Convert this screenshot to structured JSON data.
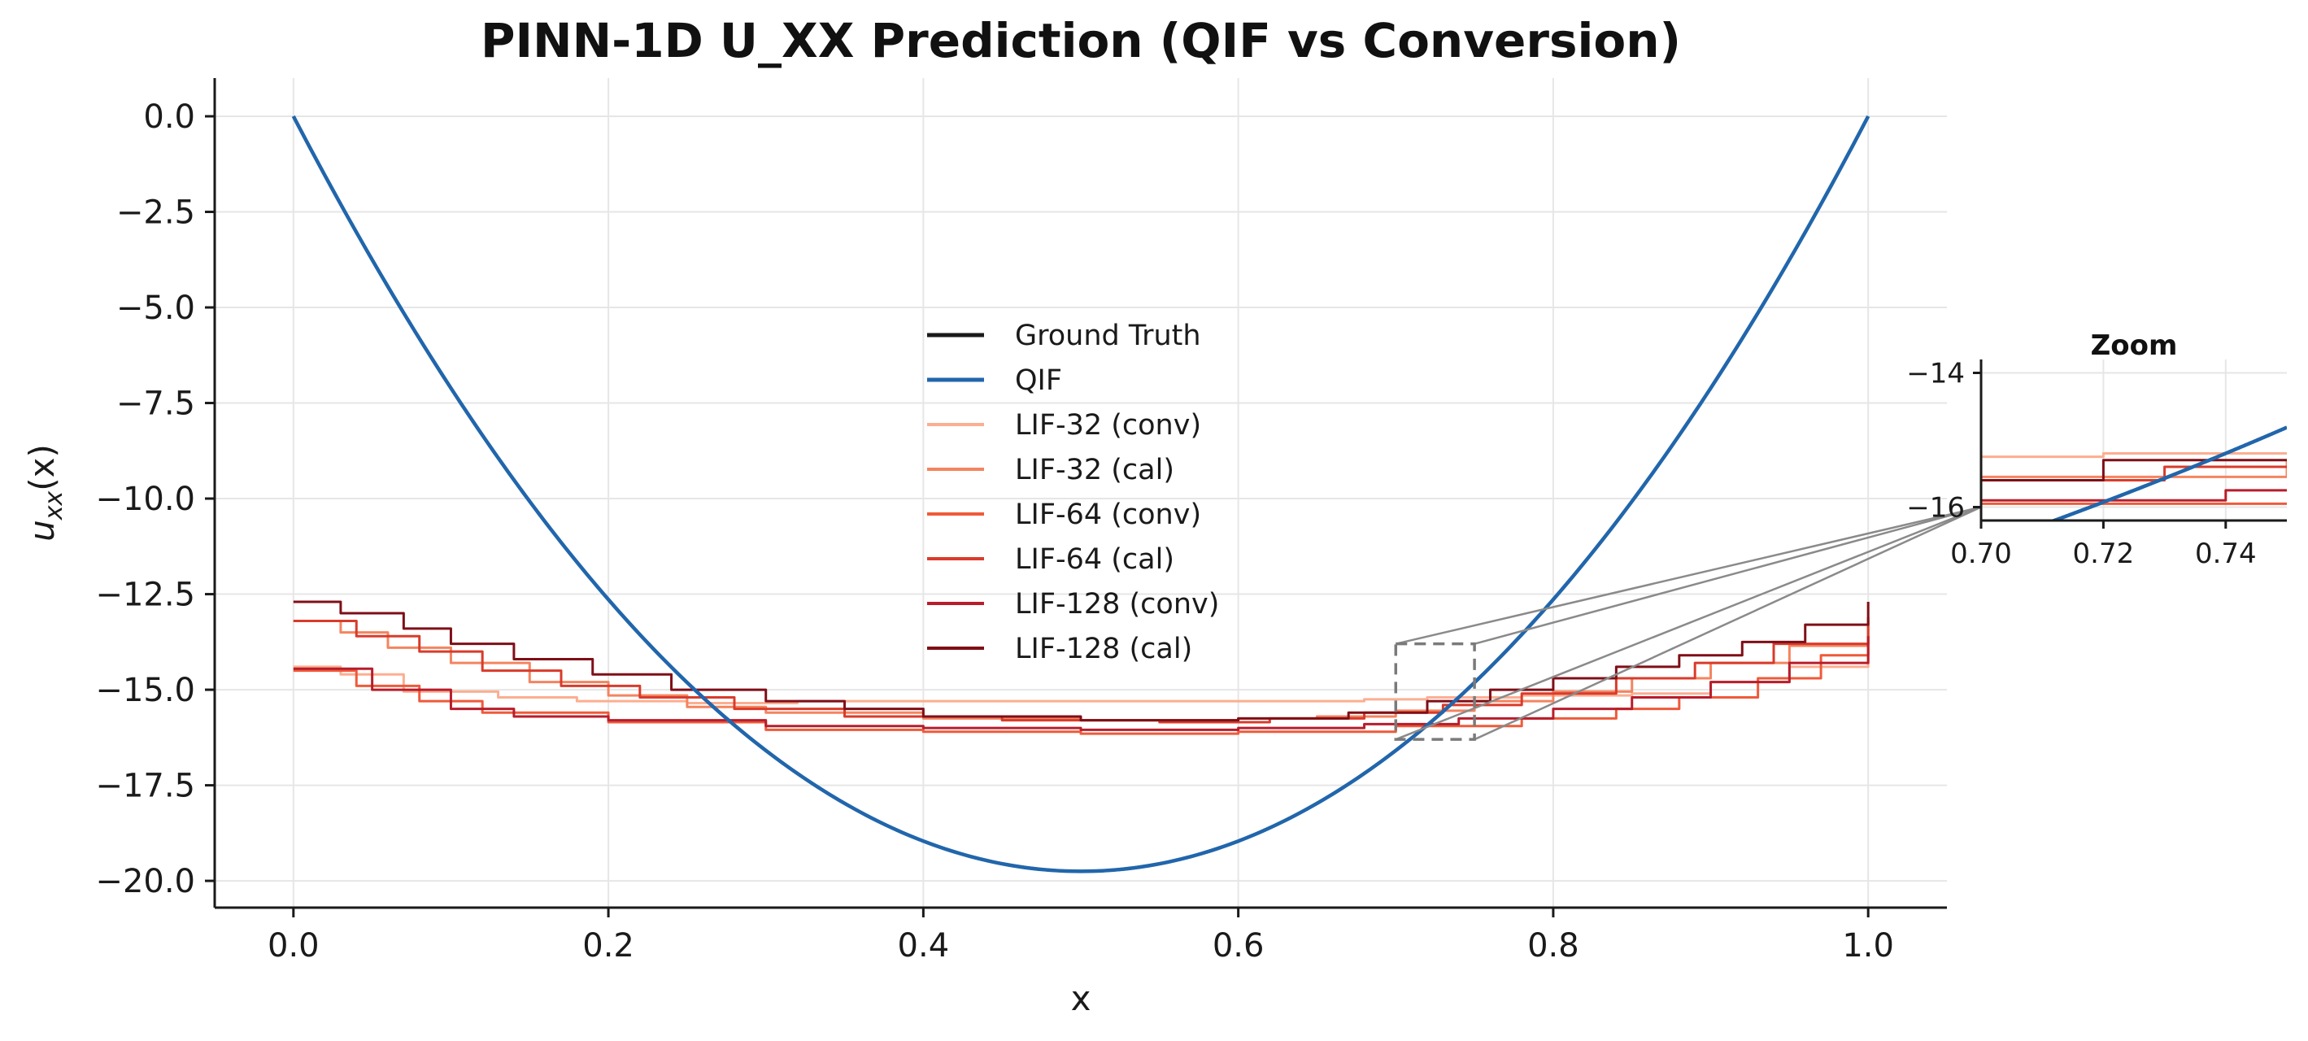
{
  "chart_data": {
    "type": "line",
    "title": "PINN-1D U_XX Prediction (QIF vs Conversion)",
    "xlabel": "x",
    "ylabel": "u_xx(x)",
    "ylabel_main": "u",
    "ylabel_sub": "xx",
    "ylabel_tail": "(x)",
    "xlim": [
      -0.05,
      1.05
    ],
    "ylim": [
      -20.7,
      1.0
    ],
    "xticks": [
      0.0,
      0.2,
      0.4,
      0.6,
      0.8,
      1.0
    ],
    "xtick_labels": [
      "0.0",
      "0.2",
      "0.4",
      "0.6",
      "0.8",
      "1.0"
    ],
    "yticks": [
      0.0,
      -2.5,
      -5.0,
      -7.5,
      -10.0,
      -12.5,
      -15.0,
      -17.5,
      -20.0
    ],
    "ytick_labels": [
      "0.0",
      "−2.5",
      "−5.0",
      "−7.5",
      "−10.0",
      "−12.5",
      "−15.0",
      "−17.5",
      "−20.0"
    ],
    "grid": true,
    "legend_position": "center",
    "series": [
      {
        "name": "Ground Truth",
        "color": "#1a1a1a",
        "style": "curve",
        "formula": "79*x*(x-1)",
        "width": 4
      },
      {
        "name": "QIF",
        "color": "#2166ac",
        "style": "curve",
        "formula": "79*x*(x-1)",
        "width": 4.5
      },
      {
        "name": "LIF-32 (conv)",
        "color": "#fcae91",
        "style": "step",
        "width": 3,
        "points": [
          [
            0.0,
            -14.4
          ],
          [
            0.03,
            -14.6
          ],
          [
            0.07,
            -15.05
          ],
          [
            0.13,
            -15.2
          ],
          [
            0.18,
            -15.3
          ],
          [
            0.25,
            -15.35
          ],
          [
            0.32,
            -15.3
          ],
          [
            0.45,
            -15.3
          ],
          [
            0.58,
            -15.3
          ],
          [
            0.64,
            -15.3
          ],
          [
            0.68,
            -15.25
          ],
          [
            0.72,
            -15.2
          ],
          [
            0.78,
            -15.15
          ],
          [
            0.85,
            -15.1
          ],
          [
            0.9,
            -14.8
          ],
          [
            0.95,
            -14.4
          ],
          [
            1.0,
            -13.9
          ]
        ]
      },
      {
        "name": "LIF-32 (cal)",
        "color": "#f4845f",
        "style": "step",
        "width": 3,
        "points": [
          [
            0.0,
            -13.2
          ],
          [
            0.03,
            -13.5
          ],
          [
            0.06,
            -13.9
          ],
          [
            0.1,
            -14.3
          ],
          [
            0.15,
            -14.8
          ],
          [
            0.2,
            -15.15
          ],
          [
            0.25,
            -15.45
          ],
          [
            0.3,
            -15.6
          ],
          [
            0.4,
            -15.75
          ],
          [
            0.5,
            -15.8
          ],
          [
            0.6,
            -15.75
          ],
          [
            0.65,
            -15.7
          ],
          [
            0.7,
            -15.55
          ],
          [
            0.75,
            -15.3
          ],
          [
            0.8,
            -15.05
          ],
          [
            0.85,
            -14.7
          ],
          [
            0.9,
            -14.3
          ],
          [
            0.95,
            -13.85
          ],
          [
            1.0,
            -13.2
          ]
        ]
      },
      {
        "name": "LIF-64 (conv)",
        "color": "#ef5a3a",
        "style": "step",
        "width": 3,
        "points": [
          [
            0.0,
            -14.5
          ],
          [
            0.04,
            -14.9
          ],
          [
            0.08,
            -15.3
          ],
          [
            0.12,
            -15.6
          ],
          [
            0.2,
            -15.85
          ],
          [
            0.3,
            -16.05
          ],
          [
            0.4,
            -16.1
          ],
          [
            0.5,
            -16.15
          ],
          [
            0.6,
            -16.1
          ],
          [
            0.7,
            -15.95
          ],
          [
            0.78,
            -15.75
          ],
          [
            0.84,
            -15.5
          ],
          [
            0.88,
            -15.2
          ],
          [
            0.93,
            -14.7
          ],
          [
            0.97,
            -14.1
          ],
          [
            1.0,
            -13.6
          ]
        ]
      },
      {
        "name": "LIF-64 (cal)",
        "color": "#d93b2b",
        "style": "step",
        "width": 3,
        "points": [
          [
            0.0,
            -13.2
          ],
          [
            0.04,
            -13.6
          ],
          [
            0.08,
            -14.0
          ],
          [
            0.12,
            -14.5
          ],
          [
            0.17,
            -14.9
          ],
          [
            0.22,
            -15.2
          ],
          [
            0.28,
            -15.5
          ],
          [
            0.35,
            -15.7
          ],
          [
            0.45,
            -15.8
          ],
          [
            0.55,
            -15.85
          ],
          [
            0.62,
            -15.75
          ],
          [
            0.68,
            -15.6
          ],
          [
            0.73,
            -15.4
          ],
          [
            0.78,
            -15.1
          ],
          [
            0.84,
            -14.7
          ],
          [
            0.89,
            -14.3
          ],
          [
            0.94,
            -13.8
          ],
          [
            1.0,
            -13.1
          ]
        ]
      },
      {
        "name": "LIF-128 (conv)",
        "color": "#b81d2b",
        "style": "step",
        "width": 3,
        "points": [
          [
            0.0,
            -14.45
          ],
          [
            0.05,
            -15.0
          ],
          [
            0.1,
            -15.5
          ],
          [
            0.14,
            -15.7
          ],
          [
            0.2,
            -15.8
          ],
          [
            0.3,
            -15.95
          ],
          [
            0.4,
            -16.0
          ],
          [
            0.5,
            -16.05
          ],
          [
            0.6,
            -16.0
          ],
          [
            0.68,
            -15.9
          ],
          [
            0.74,
            -15.75
          ],
          [
            0.8,
            -15.5
          ],
          [
            0.85,
            -15.2
          ],
          [
            0.9,
            -14.8
          ],
          [
            0.95,
            -14.3
          ],
          [
            1.0,
            -13.6
          ]
        ]
      },
      {
        "name": "LIF-128 (cal)",
        "color": "#7f0f17",
        "style": "step",
        "width": 3,
        "points": [
          [
            0.0,
            -12.7
          ],
          [
            0.03,
            -13.0
          ],
          [
            0.07,
            -13.4
          ],
          [
            0.1,
            -13.8
          ],
          [
            0.14,
            -14.2
          ],
          [
            0.19,
            -14.6
          ],
          [
            0.24,
            -15.0
          ],
          [
            0.3,
            -15.3
          ],
          [
            0.35,
            -15.5
          ],
          [
            0.4,
            -15.7
          ],
          [
            0.5,
            -15.8
          ],
          [
            0.6,
            -15.75
          ],
          [
            0.67,
            -15.6
          ],
          [
            0.72,
            -15.3
          ],
          [
            0.76,
            -15.0
          ],
          [
            0.8,
            -14.7
          ],
          [
            0.84,
            -14.4
          ],
          [
            0.88,
            -14.1
          ],
          [
            0.92,
            -13.75
          ],
          [
            0.96,
            -13.3
          ],
          [
            1.0,
            -12.7
          ]
        ]
      }
    ],
    "zoom_box": {
      "x_range": [
        0.7,
        0.75
      ],
      "y_range": [
        -16.3,
        -13.8
      ]
    },
    "inset": {
      "title": "Zoom",
      "xlim": [
        0.7,
        0.75
      ],
      "ylim": [
        -16.2,
        -13.8
      ],
      "xticks": [
        0.7,
        0.72,
        0.74
      ],
      "xtick_labels": [
        "0.70",
        "0.72",
        "0.74"
      ],
      "yticks": [
        -14,
        -16
      ],
      "ytick_labels": [
        "−14",
        "−16"
      ]
    }
  }
}
